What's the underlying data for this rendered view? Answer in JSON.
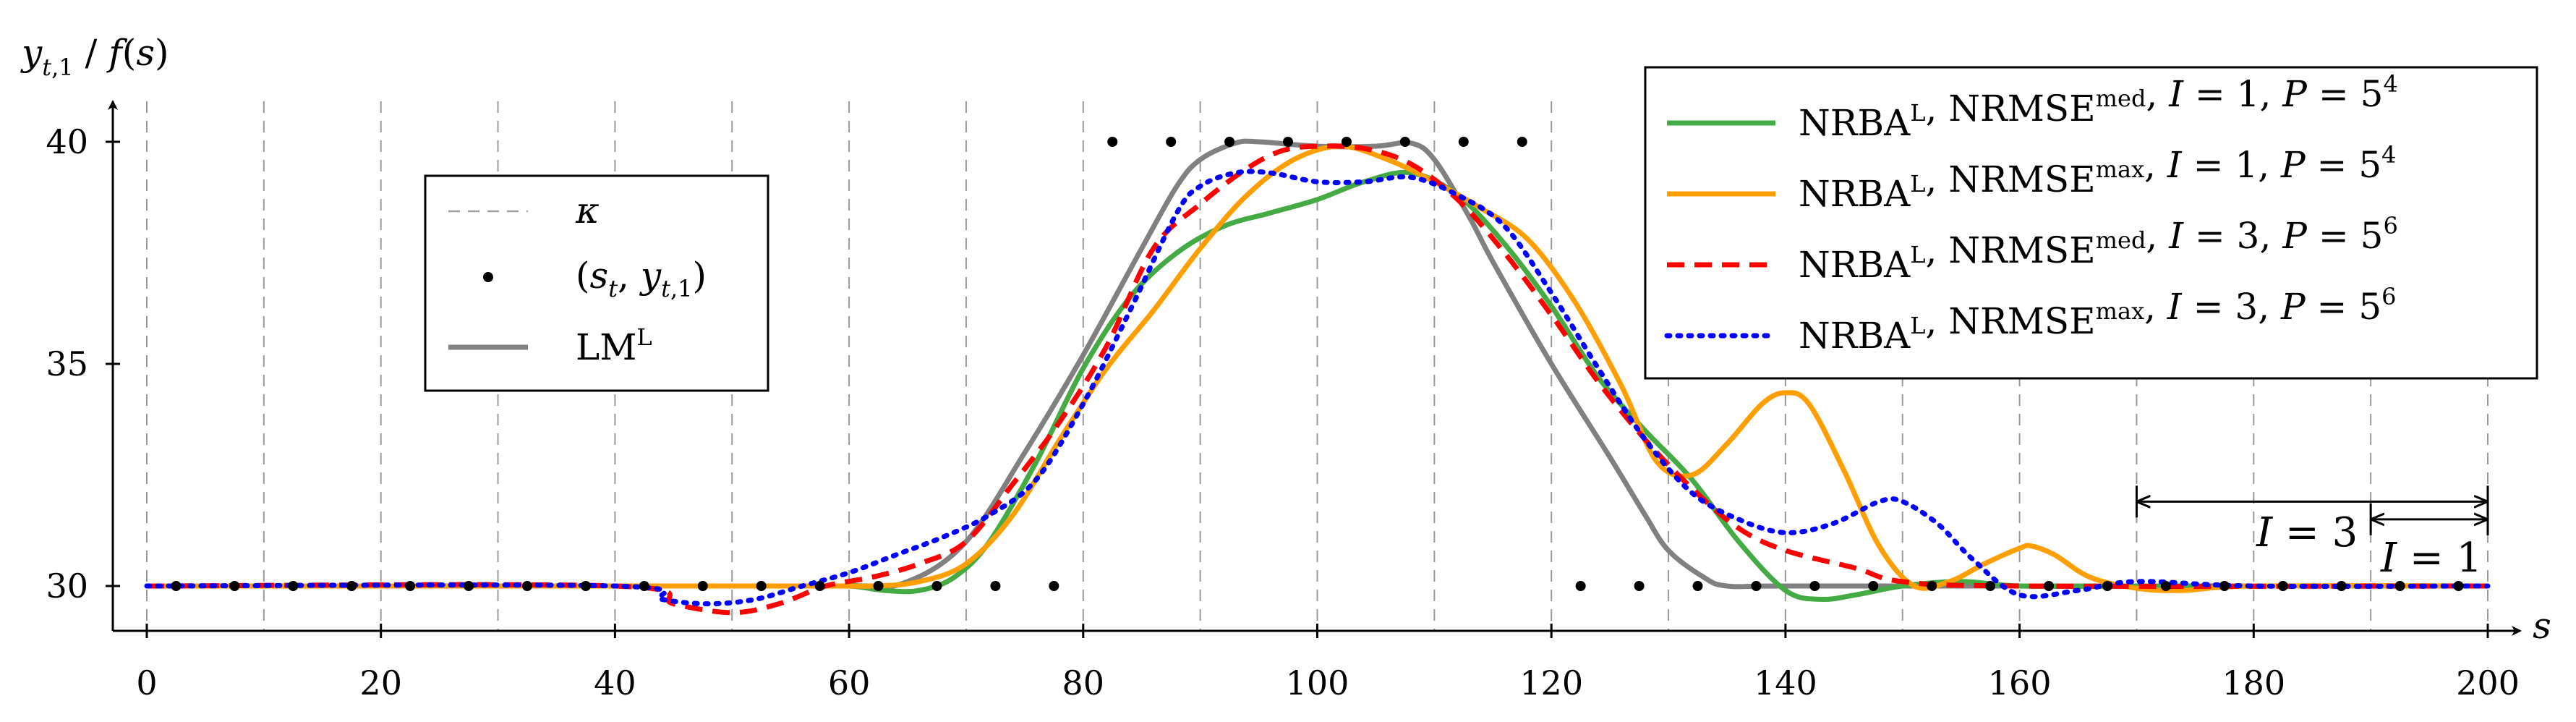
{
  "chart_data": {
    "type": "line",
    "xlabel": "s",
    "ylabel": "y_{t,1} / f(s)",
    "xlim": [
      0,
      200
    ],
    "ylim": [
      29,
      40.7
    ],
    "x_ticks": [
      0,
      20,
      40,
      60,
      80,
      100,
      120,
      140,
      160,
      180,
      200
    ],
    "x_tick_labels": [
      "0",
      "20",
      "40",
      "60",
      "80",
      "100",
      "120",
      "140",
      "160",
      "180",
      "200"
    ],
    "y_ticks": [
      30,
      35,
      40
    ],
    "y_tick_labels": [
      "30",
      "35",
      "40"
    ],
    "knots": [
      0,
      10,
      20,
      30,
      40,
      50,
      60,
      70,
      80,
      90,
      100,
      110,
      120,
      130,
      140,
      150,
      160,
      170,
      180,
      190,
      200
    ],
    "observations": {
      "x": [
        2.5,
        7.5,
        12.5,
        17.5,
        22.5,
        27.5,
        32.5,
        37.5,
        42.5,
        47.5,
        52.5,
        57.5,
        62.5,
        67.5,
        72.5,
        77.5,
        82.5,
        87.5,
        92.5,
        97.5,
        102.5,
        107.5,
        112.5,
        117.5,
        122.5,
        127.5,
        132.5,
        137.5,
        142.5,
        147.5,
        152.5,
        157.5,
        162.5,
        167.5,
        172.5,
        177.5,
        182.5,
        187.5,
        192.5,
        197.5
      ],
      "y": [
        30,
        30,
        30,
        30,
        30,
        30,
        30,
        30,
        30,
        30,
        30,
        30,
        30,
        30,
        30,
        30,
        40,
        40,
        40,
        40,
        40,
        40,
        40,
        40,
        30,
        30,
        30,
        30,
        30,
        30,
        30,
        30,
        30,
        30,
        30,
        30,
        30,
        30,
        30,
        30
      ]
    },
    "series": [
      {
        "name": "LM^L",
        "color": "#808080",
        "dash": "solid",
        "x": [
          0,
          40,
          60,
          65,
          70,
          75,
          80,
          85,
          88,
          90,
          93,
          95,
          100,
          105,
          108,
          110,
          113,
          115,
          120,
          125,
          128,
          130,
          133,
          135,
          140,
          160,
          200
        ],
        "y": [
          30,
          30,
          30,
          30.1,
          31,
          33,
          35.2,
          37.6,
          39,
          39.6,
          39.97,
          40,
          39.9,
          39.9,
          39.97,
          39.6,
          38.3,
          37.3,
          35,
          32.9,
          31.6,
          30.8,
          30.2,
          30,
          30,
          30,
          30
        ]
      },
      {
        "name": "NRBA^L, NRMSE^med, I = 1, P = 5^4",
        "color": "#44aa44",
        "dash": "solid",
        "x": [
          0,
          55,
          60,
          63,
          66,
          69,
          72,
          76,
          80,
          84,
          88,
          92,
          96,
          100,
          104,
          108,
          112,
          116,
          120,
          124,
          128,
          132,
          136,
          140,
          143,
          146,
          150,
          155,
          160,
          170,
          180,
          200
        ],
        "y": [
          30,
          30,
          30,
          29.9,
          29.9,
          30.2,
          31,
          32.8,
          34.9,
          36.5,
          37.5,
          38.1,
          38.4,
          38.7,
          39.1,
          39.3,
          38.8,
          37.7,
          36.3,
          34.7,
          33.5,
          32.4,
          31,
          29.9,
          29.7,
          29.8,
          30,
          30.1,
          30,
          30,
          30,
          30
        ]
      },
      {
        "name": "NRBA^L, NRMSE^max, I = 1, P = 5^4",
        "color": "#ff9e00",
        "dash": "solid",
        "x": [
          0,
          55,
          62,
          66,
          70,
          74,
          78,
          82,
          86,
          90,
          94,
          98,
          102,
          106,
          110,
          114,
          118,
          122,
          126,
          129,
          132,
          135,
          138,
          140,
          142,
          145,
          148,
          151,
          154,
          157,
          160,
          161,
          163,
          166,
          170,
          174,
          180,
          200
        ],
        "y": [
          30,
          30,
          30,
          30.1,
          30.5,
          31.6,
          33.3,
          34.9,
          36.2,
          37.6,
          38.8,
          39.6,
          39.9,
          39.6,
          39.1,
          38.5,
          37.8,
          36.4,
          34.5,
          32.8,
          32.5,
          33.2,
          34.1,
          34.35,
          34.1,
          32.6,
          30.9,
          30,
          30.1,
          30.5,
          30.85,
          30.9,
          30.7,
          30.2,
          29.95,
          29.9,
          30,
          30
        ]
      },
      {
        "name": "NRBA^L, NRMSE^med, I = 3, P = 5^6",
        "color": "#ff0000",
        "dash": "dashed",
        "x": [
          0,
          40,
          45,
          50,
          54,
          58,
          62,
          66,
          70,
          74,
          78,
          82,
          86,
          90,
          94,
          97,
          100,
          104,
          108,
          112,
          116,
          120,
          124,
          128,
          132,
          136,
          140,
          146,
          150,
          160,
          200
        ],
        "y": [
          30,
          30,
          29.6,
          29.4,
          29.6,
          30,
          30.2,
          30.5,
          31,
          32.3,
          33.7,
          35.4,
          37.6,
          38.6,
          39.4,
          39.8,
          39.9,
          39.85,
          39.5,
          38.7,
          37.5,
          36.1,
          34.6,
          33.3,
          32.2,
          31.3,
          30.8,
          30.4,
          30.1,
          30,
          30
        ]
      },
      {
        "name": "NRBA^L, NRMSE^max, I = 3, P = 5^6",
        "color": "#0000ff",
        "dash": "dotted",
        "x": [
          0,
          40,
          44,
          48,
          52,
          56,
          60,
          64,
          68,
          72,
          76,
          80,
          84,
          88,
          90,
          93,
          96,
          100,
          104,
          108,
          112,
          116,
          120,
          124,
          128,
          132,
          136,
          140,
          144,
          148,
          150,
          153,
          156,
          160,
          165,
          170,
          180,
          200
        ],
        "y": [
          30,
          30,
          29.7,
          29.6,
          29.7,
          30,
          30.3,
          30.7,
          31.1,
          31.6,
          32.4,
          34.1,
          36.2,
          38.4,
          39,
          39.3,
          39.3,
          39.1,
          39.1,
          39.2,
          38.8,
          38.1,
          36.6,
          34.9,
          33.3,
          32.1,
          31.5,
          31.2,
          31.4,
          31.9,
          31.9,
          31.4,
          30.6,
          29.8,
          29.9,
          30.1,
          30,
          30
        ]
      }
    ],
    "legend_left": {
      "position": "top-left",
      "entries": [
        {
          "label": "κ",
          "style": "dashed-gray"
        },
        {
          "label": "(s_t, y_{t,1})",
          "style": "dot"
        },
        {
          "label": "LM^L",
          "style": "solid-gray"
        }
      ]
    },
    "legend_right": {
      "position": "top-right",
      "entries": [
        {
          "label": "NRBA^L, NRMSE^med, I = 1, P = 5^4",
          "color": "#44aa44",
          "style": "solid"
        },
        {
          "label": "NRBA^L, NRMSE^max, I = 1, P = 5^4",
          "color": "#ff9e00",
          "style": "solid"
        },
        {
          "label": "NRBA^L, NRMSE^med, I = 3, P = 5^6",
          "color": "#ff0000",
          "style": "dashed"
        },
        {
          "label": "NRBA^L, NRMSE^max, I = 3, P = 5^6",
          "color": "#0000ff",
          "style": "dotted"
        }
      ]
    },
    "annotations": [
      {
        "label": "I = 3",
        "from": 170,
        "to": 200,
        "y": 31.9
      },
      {
        "label": "I = 1",
        "from": 190,
        "to": 200,
        "y": 31.5
      }
    ]
  }
}
